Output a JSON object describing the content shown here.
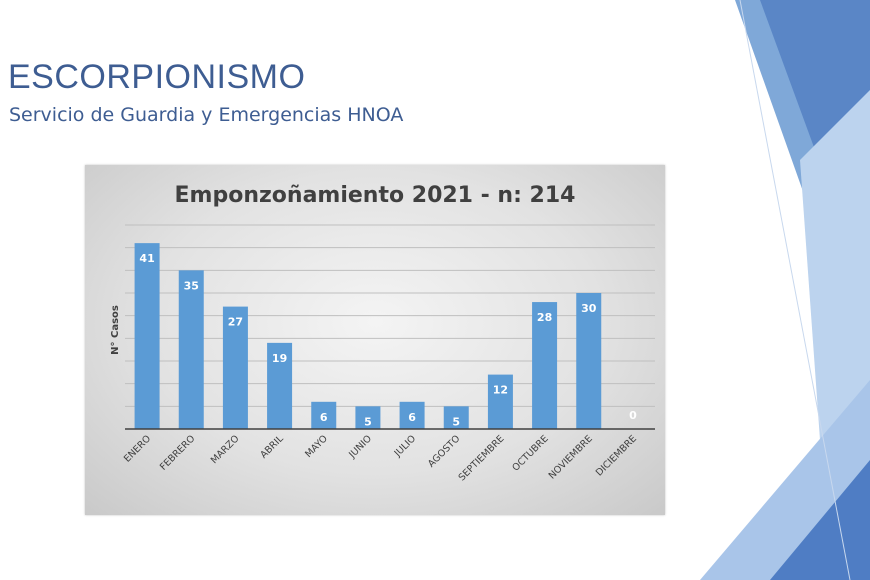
{
  "slide": {
    "title": "ESCORPIONISMO",
    "subtitle": "Servicio de Guardia y Emergencias HNOA"
  },
  "colors": {
    "title": "#3e5d92",
    "bar": "#5b9bd5",
    "deco_dark": "#4a78c0",
    "deco_light": "#9dc0e6"
  },
  "chart_data": {
    "type": "bar",
    "title": "Emponzoñamiento 2021 - n: 214",
    "ylabel": "N° Casos",
    "xlabel": "",
    "categories": [
      "ENERO",
      "FEBRERO",
      "MARZO",
      "ABRIL",
      "MAYO",
      "JUNIO",
      "JULIO",
      "AGOSTO",
      "SEPTIEMBRE",
      "OCTUBRE",
      "NOVIEMBRE",
      "DICIEMBRE"
    ],
    "values": [
      41,
      35,
      27,
      19,
      6,
      5,
      6,
      5,
      12,
      28,
      30,
      0
    ],
    "ylim": [
      0,
      45
    ],
    "grid": true,
    "data_labels": true,
    "legend": "none"
  }
}
